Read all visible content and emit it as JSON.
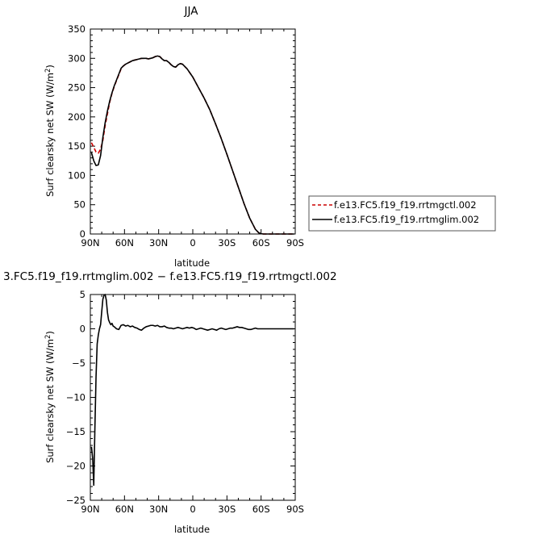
{
  "chart_data": [
    {
      "type": "line",
      "title": "JJA",
      "xlabel": "latitude",
      "ylabel": "Surf clearsky net SW (W/m²)",
      "ylabel_main": "Surf clearsky net SW (W/m",
      "ylabel_sup": "2",
      "ylabel_close": ")",
      "xlim": [
        90,
        -90
      ],
      "ylim": [
        0,
        350
      ],
      "x_ticks": [
        90,
        60,
        30,
        0,
        -30,
        -60,
        -90
      ],
      "x_tick_labels": [
        "90N",
        "60N",
        "30N",
        "0",
        "30S",
        "60S",
        "90S"
      ],
      "y_ticks": [
        0,
        50,
        100,
        150,
        200,
        250,
        300,
        350
      ],
      "y_tick_labels": [
        "0",
        "50",
        "100",
        "150",
        "200",
        "250",
        "300",
        "350"
      ],
      "legend": {
        "position": "right"
      },
      "series": [
        {
          "name": "f.e13.FC5.f19_f19.rrtmgctl.002",
          "color": "#cc0000",
          "dash": "dashed",
          "x": [
            89,
            87,
            85,
            83,
            81,
            79,
            77,
            75,
            73,
            71,
            69,
            67,
            65,
            63,
            61,
            59,
            57,
            55,
            53,
            51,
            49,
            47,
            45,
            43,
            41,
            39,
            37,
            35,
            33,
            31,
            29,
            27,
            25,
            23,
            21,
            19,
            17,
            15,
            13,
            11,
            9,
            5,
            0,
            -5,
            -10,
            -15,
            -20,
            -25,
            -30,
            -35,
            -40,
            -45,
            -50,
            -55,
            -58,
            -60,
            -62,
            -64,
            -66,
            -70,
            -75,
            -80,
            -85,
            -89
          ],
          "y": [
            156,
            148,
            140,
            138,
            145,
            160,
            185,
            205,
            225,
            240,
            252,
            262,
            272,
            282,
            287,
            290,
            292,
            294,
            296,
            297,
            298,
            299,
            300,
            300,
            300,
            299,
            300,
            301,
            303,
            304,
            303,
            299,
            296,
            296,
            293,
            289,
            286,
            285,
            289,
            291,
            290,
            282,
            268,
            250,
            232,
            212,
            188,
            163,
            136,
            108,
            80,
            52,
            27,
            8,
            2,
            0.5,
            0,
            0,
            0,
            0,
            0,
            0,
            0,
            0
          ]
        },
        {
          "name": "f.e13.FC5.f19_f19.rrtmglim.002",
          "color": "#000000",
          "dash": "solid",
          "x": [
            89,
            87,
            85,
            83,
            81,
            79,
            77,
            75,
            73,
            71,
            69,
            67,
            65,
            63,
            61,
            59,
            57,
            55,
            53,
            51,
            49,
            47,
            45,
            43,
            41,
            39,
            37,
            35,
            33,
            31,
            29,
            27,
            25,
            23,
            21,
            19,
            17,
            15,
            13,
            11,
            9,
            5,
            0,
            -5,
            -10,
            -15,
            -20,
            -25,
            -30,
            -35,
            -40,
            -45,
            -50,
            -55,
            -58,
            -60,
            -62,
            -64,
            -66,
            -70,
            -75,
            -80,
            -85,
            -89
          ],
          "y": [
            139,
            125,
            117,
            118,
            134,
            165,
            190,
            210,
            227,
            241,
            253,
            263,
            273,
            283,
            287,
            290,
            292,
            294,
            296,
            297,
            298,
            299,
            300,
            300,
            300,
            299,
            300,
            301,
            303,
            304,
            303,
            299,
            296,
            296,
            293,
            289,
            286,
            285,
            289,
            291,
            290,
            282,
            268,
            250,
            232,
            212,
            188,
            163,
            136,
            108,
            80,
            52,
            27,
            8,
            2,
            0.5,
            0,
            0,
            0,
            0,
            0,
            0,
            0,
            0
          ]
        }
      ]
    },
    {
      "type": "line",
      "title": "3.FC5.f19_f19.rrtmglim.002 − f.e13.FC5.f19_f19.rrtmgctl.002",
      "xlabel": "latitude",
      "ylabel": "Surf clearsky net SW (W/m²)",
      "ylabel_main": "Surf clearsky net SW (W/m",
      "ylabel_sup": "2",
      "ylabel_close": ")",
      "xlim": [
        90,
        -90
      ],
      "ylim": [
        -25,
        5
      ],
      "x_ticks": [
        90,
        60,
        30,
        0,
        -30,
        -60,
        -90
      ],
      "x_tick_labels": [
        "90N",
        "60N",
        "30N",
        "0",
        "30S",
        "60S",
        "90S"
      ],
      "y_ticks": [
        5,
        0,
        -5,
        -10,
        -15,
        -20,
        -25
      ],
      "y_tick_labels": [
        "5",
        "0",
        "−5",
        "−10",
        "−15",
        "−20",
        "−25"
      ],
      "series": [
        {
          "color": "#000000",
          "dash": "solid",
          "x": [
            89,
            88,
            87,
            86,
            85,
            84,
            83,
            82,
            81,
            80,
            79,
            78,
            77,
            76,
            75,
            74,
            73,
            72,
            71,
            70,
            69,
            67,
            65,
            63,
            61,
            59,
            57,
            55,
            53,
            51,
            49,
            47,
            45,
            43,
            41,
            39,
            37,
            35,
            33,
            31,
            29,
            27,
            25,
            23,
            21,
            19,
            17,
            15,
            13,
            11,
            9,
            7,
            5,
            3,
            1,
            -1,
            -3,
            -5,
            -7,
            -9,
            -11,
            -13,
            -15,
            -17,
            -19,
            -21,
            -23,
            -25,
            -27,
            -29,
            -31,
            -33,
            -35,
            -37,
            -39,
            -41,
            -43,
            -45,
            -47,
            -49,
            -51,
            -53,
            -55,
            -57,
            -59,
            -61,
            -63,
            -65,
            -70,
            -75,
            -80,
            -85,
            -89
          ],
          "y": [
            -17.2,
            -18.8,
            -22.8,
            -14.5,
            -7.0,
            -2.2,
            -0.9,
            0.0,
            0.6,
            2.5,
            4.3,
            4.9,
            5.0,
            4.2,
            2.4,
            1.3,
            0.9,
            0.6,
            0.8,
            0.4,
            0.3,
            0.0,
            -0.1,
            0.5,
            0.6,
            0.4,
            0.5,
            0.3,
            0.4,
            0.2,
            0.1,
            -0.1,
            -0.2,
            0.1,
            0.3,
            0.4,
            0.5,
            0.5,
            0.4,
            0.5,
            0.3,
            0.3,
            0.4,
            0.2,
            0.1,
            0.1,
            0.0,
            0.1,
            0.2,
            0.1,
            0.0,
            0.1,
            0.2,
            0.1,
            0.2,
            0.1,
            -0.1,
            0.0,
            0.1,
            0.0,
            -0.1,
            -0.2,
            -0.1,
            0.0,
            -0.1,
            -0.2,
            0.0,
            0.1,
            0.0,
            -0.1,
            0.0,
            0.1,
            0.1,
            0.2,
            0.3,
            0.2,
            0.2,
            0.1,
            0.0,
            -0.1,
            -0.1,
            0.0,
            0.1,
            0.0,
            0.0,
            0.0,
            0.0,
            0.0,
            0.0,
            0.0,
            0.0,
            0.0,
            0.0
          ]
        }
      ]
    }
  ]
}
